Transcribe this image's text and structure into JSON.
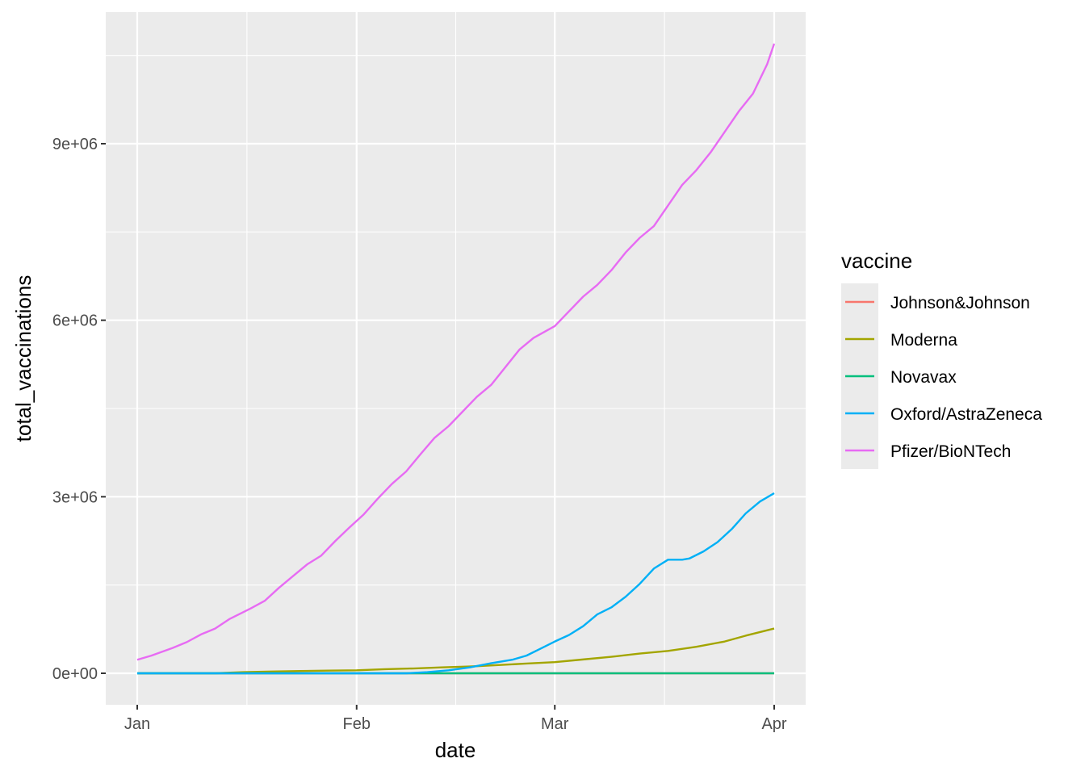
{
  "chart_data": {
    "type": "line",
    "title": "",
    "xlabel": "date",
    "ylabel": "total_vaccinations",
    "x_ticks": [
      "Jan",
      "Feb",
      "Mar",
      "Apr"
    ],
    "y_ticks": [
      "0e+00",
      "3e+06",
      "6e+06",
      "9e+06"
    ],
    "xlim": [
      "2021-01-01",
      "2021-04-01"
    ],
    "ylim": [
      0,
      10700000
    ],
    "grid": true,
    "legend": {
      "title": "vaccine",
      "position": "right"
    },
    "series": [
      {
        "name": "Johnson&Johnson",
        "color": "#F8766D",
        "points": [
          [
            "2021-01-01",
            0
          ],
          [
            "2021-04-01",
            0
          ]
        ]
      },
      {
        "name": "Moderna",
        "color": "#A3A500",
        "points": [
          [
            "2021-01-01",
            0
          ],
          [
            "2021-01-12",
            0
          ],
          [
            "2021-01-16",
            20000
          ],
          [
            "2021-01-20",
            30000
          ],
          [
            "2021-01-24",
            38000
          ],
          [
            "2021-01-28",
            45000
          ],
          [
            "2021-02-01",
            50000
          ],
          [
            "2021-02-05",
            70000
          ],
          [
            "2021-02-09",
            82000
          ],
          [
            "2021-02-13",
            100000
          ],
          [
            "2021-02-17",
            115000
          ],
          [
            "2021-02-21",
            140000
          ],
          [
            "2021-02-25",
            165000
          ],
          [
            "2021-03-01",
            190000
          ],
          [
            "2021-03-05",
            235000
          ],
          [
            "2021-03-09",
            280000
          ],
          [
            "2021-03-13",
            335000
          ],
          [
            "2021-03-17",
            380000
          ],
          [
            "2021-03-21",
            450000
          ],
          [
            "2021-03-25",
            540000
          ],
          [
            "2021-03-28",
            640000
          ],
          [
            "2021-04-01",
            760000
          ]
        ]
      },
      {
        "name": "Novavax",
        "color": "#00BF7D",
        "points": [
          [
            "2021-01-01",
            0
          ],
          [
            "2021-04-01",
            0
          ]
        ]
      },
      {
        "name": "Oxford/AstraZeneca",
        "color": "#00B0F6",
        "points": [
          [
            "2021-01-01",
            0
          ],
          [
            "2021-02-08",
            0
          ],
          [
            "2021-02-11",
            20000
          ],
          [
            "2021-02-14",
            50000
          ],
          [
            "2021-02-17",
            100000
          ],
          [
            "2021-02-20",
            170000
          ],
          [
            "2021-02-23",
            230000
          ],
          [
            "2021-02-25",
            300000
          ],
          [
            "2021-02-27",
            420000
          ],
          [
            "2021-03-01",
            540000
          ],
          [
            "2021-03-03",
            650000
          ],
          [
            "2021-03-05",
            800000
          ],
          [
            "2021-03-07",
            1000000
          ],
          [
            "2021-03-09",
            1120000
          ],
          [
            "2021-03-11",
            1300000
          ],
          [
            "2021-03-13",
            1520000
          ],
          [
            "2021-03-15",
            1780000
          ],
          [
            "2021-03-17",
            1930000
          ],
          [
            "2021-03-19",
            1930000
          ],
          [
            "2021-03-20",
            1950000
          ],
          [
            "2021-03-22",
            2070000
          ],
          [
            "2021-03-24",
            2230000
          ],
          [
            "2021-03-26",
            2450000
          ],
          [
            "2021-03-28",
            2720000
          ],
          [
            "2021-03-30",
            2920000
          ],
          [
            "2021-04-01",
            3060000
          ]
        ]
      },
      {
        "name": "Pfizer/BioNTech",
        "color": "#E76BF3",
        "points": [
          [
            "2021-01-01",
            230000
          ],
          [
            "2021-01-03",
            300000
          ],
          [
            "2021-01-06",
            430000
          ],
          [
            "2021-01-08",
            530000
          ],
          [
            "2021-01-10",
            660000
          ],
          [
            "2021-01-12",
            760000
          ],
          [
            "2021-01-14",
            920000
          ],
          [
            "2021-01-17",
            1100000
          ],
          [
            "2021-01-19",
            1230000
          ],
          [
            "2021-01-21",
            1450000
          ],
          [
            "2021-01-23",
            1650000
          ],
          [
            "2021-01-25",
            1850000
          ],
          [
            "2021-01-27",
            2000000
          ],
          [
            "2021-01-29",
            2250000
          ],
          [
            "2021-01-31",
            2480000
          ],
          [
            "2021-02-02",
            2700000
          ],
          [
            "2021-02-04",
            2970000
          ],
          [
            "2021-02-06",
            3220000
          ],
          [
            "2021-02-08",
            3430000
          ],
          [
            "2021-02-10",
            3720000
          ],
          [
            "2021-02-12",
            4000000
          ],
          [
            "2021-02-14",
            4200000
          ],
          [
            "2021-02-16",
            4450000
          ],
          [
            "2021-02-18",
            4700000
          ],
          [
            "2021-02-20",
            4900000
          ],
          [
            "2021-02-22",
            5200000
          ],
          [
            "2021-02-24",
            5500000
          ],
          [
            "2021-02-26",
            5700000
          ],
          [
            "2021-03-01",
            5900000
          ],
          [
            "2021-03-03",
            6150000
          ],
          [
            "2021-03-05",
            6400000
          ],
          [
            "2021-03-07",
            6600000
          ],
          [
            "2021-03-09",
            6850000
          ],
          [
            "2021-03-11",
            7150000
          ],
          [
            "2021-03-13",
            7400000
          ],
          [
            "2021-03-15",
            7600000
          ],
          [
            "2021-03-17",
            7950000
          ],
          [
            "2021-03-19",
            8300000
          ],
          [
            "2021-03-21",
            8550000
          ],
          [
            "2021-03-23",
            8850000
          ],
          [
            "2021-03-25",
            9200000
          ],
          [
            "2021-03-27",
            9550000
          ],
          [
            "2021-03-29",
            9850000
          ],
          [
            "2021-03-31",
            10350000
          ],
          [
            "2021-04-01",
            10700000
          ]
        ]
      }
    ]
  }
}
